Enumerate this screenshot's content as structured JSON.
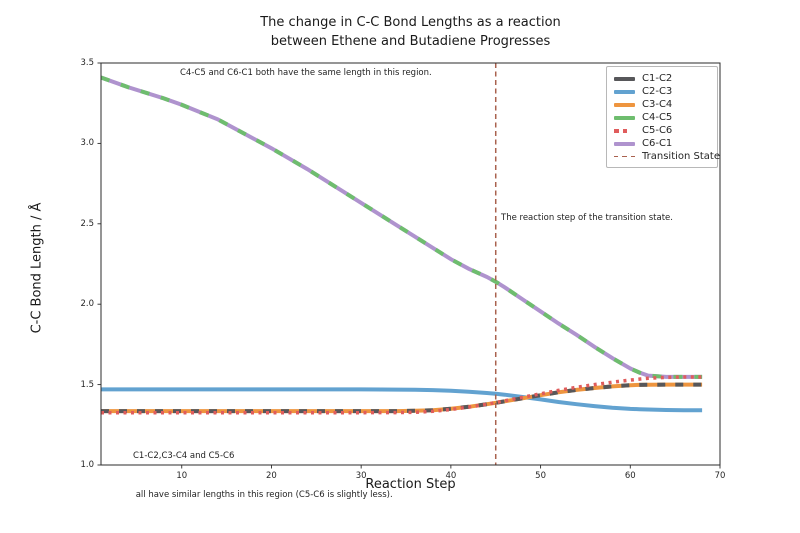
{
  "chart": {
    "title_line1": "The change in C-C Bond Lengths as a reaction",
    "title_line2": "between Ethene and Butadiene Progresses",
    "xlabel": "Reaction Step",
    "ylabel": "C-C Bond Length / Å"
  },
  "annotations": {
    "same_length_region": "C4-C5 and C6-C1 both have the same length in this region.",
    "transition_step": "The reaction step of the transition state.",
    "similar_lengths_line1": "C1-C2,C3-C4 and C5-C6",
    "similar_lengths_line2": " all have similar lengths in this region (C5-C6 is slightly less)."
  },
  "chart_data": {
    "type": "line",
    "title": "The change in C-C Bond Lengths as a reaction between Ethene and Butadiene Progresses",
    "xlabel": "Reaction Step",
    "ylabel": "C-C Bond Length / Å",
    "xlim": [
      1,
      70
    ],
    "ylim": [
      1.0,
      3.5
    ],
    "xticks": [
      10,
      20,
      30,
      40,
      50,
      60,
      70
    ],
    "yticks": [
      1.0,
      1.5,
      2.0,
      2.5,
      3.0,
      3.5
    ],
    "grid": false,
    "legend_position": "upper right",
    "x": [
      1,
      4,
      8,
      10,
      14,
      18,
      20,
      24,
      28,
      30,
      34,
      36,
      38,
      40,
      42,
      44,
      45,
      46,
      48,
      50,
      52,
      54,
      56,
      58,
      60,
      61,
      62,
      64,
      66,
      68
    ],
    "series": [
      {
        "name": "C1-C2",
        "color": "#57575a",
        "legend_marker": "thick-solid",
        "dash": "8 10",
        "width": 4,
        "order": 5,
        "values": [
          1.335,
          1.335,
          1.335,
          1.335,
          1.335,
          1.335,
          1.335,
          1.335,
          1.335,
          1.335,
          1.335,
          1.337,
          1.341,
          1.35,
          1.362,
          1.378,
          1.387,
          1.396,
          1.415,
          1.434,
          1.452,
          1.467,
          1.479,
          1.489,
          1.496,
          1.498,
          1.499,
          1.5,
          1.5,
          1.5
        ]
      },
      {
        "name": "C2-C3",
        "color": "#62a2d0",
        "legend_marker": "thick-solid",
        "dash": "none",
        "width": 4,
        "order": 3,
        "values": [
          1.47,
          1.47,
          1.47,
          1.47,
          1.47,
          1.47,
          1.47,
          1.47,
          1.47,
          1.47,
          1.469,
          1.468,
          1.466,
          1.462,
          1.456,
          1.448,
          1.443,
          1.437,
          1.423,
          1.408,
          1.392,
          1.378,
          1.366,
          1.356,
          1.349,
          1.347,
          1.345,
          1.342,
          1.34,
          1.34
        ]
      },
      {
        "name": "C3-C4",
        "color": "#ee953f",
        "legend_marker": "thick-solid",
        "dash": "none",
        "width": 4,
        "order": 4,
        "values": [
          1.335,
          1.335,
          1.335,
          1.335,
          1.335,
          1.335,
          1.335,
          1.335,
          1.335,
          1.335,
          1.335,
          1.337,
          1.341,
          1.35,
          1.362,
          1.378,
          1.387,
          1.396,
          1.415,
          1.434,
          1.452,
          1.467,
          1.479,
          1.489,
          1.496,
          1.498,
          1.499,
          1.5,
          1.5,
          1.5
        ]
      },
      {
        "name": "C4-C5",
        "color": "#6ebd6e",
        "legend_marker": "thick-solid",
        "dash": "9 12",
        "width": 4,
        "order": 2,
        "values": [
          3.41,
          3.35,
          3.28,
          3.24,
          3.15,
          3.03,
          2.97,
          2.84,
          2.7,
          2.63,
          2.49,
          2.42,
          2.35,
          2.28,
          2.22,
          2.17,
          2.14,
          2.105,
          2.03,
          1.955,
          1.88,
          1.81,
          1.735,
          1.665,
          1.6,
          1.575,
          1.556,
          1.548,
          1.548,
          1.548
        ]
      },
      {
        "name": "C5-C6",
        "color": "#e05c5c",
        "legend_marker": "dotted",
        "dash": "3 4.5",
        "width": 3.5,
        "order": 6,
        "values": [
          1.325,
          1.325,
          1.325,
          1.325,
          1.325,
          1.325,
          1.325,
          1.325,
          1.325,
          1.325,
          1.326,
          1.328,
          1.334,
          1.345,
          1.36,
          1.378,
          1.388,
          1.399,
          1.421,
          1.443,
          1.464,
          1.483,
          1.5,
          1.515,
          1.528,
          1.534,
          1.539,
          1.545,
          1.547,
          1.547
        ]
      },
      {
        "name": "C6-C1",
        "color": "#af93ce",
        "legend_marker": "thick-solid",
        "dash": "none",
        "width": 4,
        "order": 1,
        "values": [
          3.41,
          3.35,
          3.28,
          3.24,
          3.15,
          3.03,
          2.97,
          2.84,
          2.7,
          2.63,
          2.49,
          2.42,
          2.35,
          2.28,
          2.22,
          2.17,
          2.14,
          2.105,
          2.03,
          1.955,
          1.88,
          1.81,
          1.735,
          1.665,
          1.6,
          1.575,
          1.556,
          1.548,
          1.548,
          1.548
        ]
      }
    ],
    "transition": {
      "label": "Transition State",
      "x": 45,
      "color": "#a9614e",
      "legend_marker": "thin-dashed"
    }
  },
  "colors": {
    "frame": "#2b2b2b",
    "text": "#262626",
    "background": "#ffffff"
  }
}
